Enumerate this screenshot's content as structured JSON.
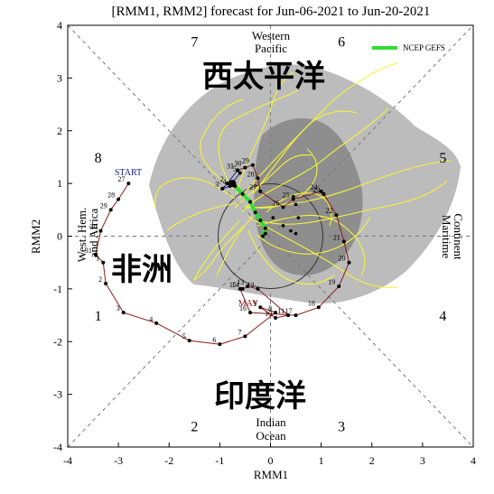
{
  "chart_data": {
    "type": "line",
    "title": "[RMM1, RMM2] forecast for Jun-06-2021 to Jun-20-2021",
    "xlabel": "RMM1",
    "ylabel": "RMM2",
    "xlim": [
      -4,
      4
    ],
    "ylim": [
      -4,
      4
    ],
    "xticks": [
      "-4",
      "-3",
      "-2",
      "-1",
      "0",
      "1",
      "2",
      "3",
      "4"
    ],
    "yticks": [
      "-4",
      "-3",
      "-2",
      "-1",
      "0",
      "1",
      "2",
      "3",
      "4"
    ],
    "grid": false,
    "legend": {
      "position": "top-right",
      "entries": [
        "NCEP GEFS"
      ]
    },
    "colors": {
      "observed_may": "#8b1a1a",
      "observed_june": "#1a1a8b",
      "ensemble": "#ffff33",
      "mean": "#33dd33",
      "spread_outer": "#bdbdbd",
      "spread_inner": "#8a8a8a"
    },
    "phases": [
      {
        "label": "1",
        "x": -3.4,
        "y": -1.5
      },
      {
        "label": "2",
        "x": -1.5,
        "y": -3.6
      },
      {
        "label": "3",
        "x": 1.4,
        "y": -3.6
      },
      {
        "label": "4",
        "x": 3.4,
        "y": -1.5
      },
      {
        "label": "5",
        "x": 3.4,
        "y": 1.5
      },
      {
        "label": "6",
        "x": 1.4,
        "y": 3.7
      },
      {
        "label": "7",
        "x": -1.5,
        "y": 3.7
      },
      {
        "label": "8",
        "x": -3.4,
        "y": 1.5
      }
    ],
    "regions": {
      "top": [
        "Western",
        "Pacific"
      ],
      "bottom": [
        "Indian",
        "Ocean"
      ],
      "left": [
        "West. Hem.",
        "and Africa"
      ],
      "right": [
        "Maritime",
        "Continent"
      ]
    },
    "overlay_labels": {
      "top": "西太平洋",
      "left": "非洲",
      "bottom": "印度洋"
    },
    "markers": {
      "start": "START",
      "month_may": "MAY"
    },
    "observed_may": [
      {
        "day": "27",
        "x": -2.8,
        "y": 1.0
      },
      {
        "day": "28",
        "x": -3.0,
        "y": 0.7
      },
      {
        "day": "29",
        "x": -3.15,
        "y": 0.5
      },
      {
        "day": "30",
        "x": -3.35,
        "y": 0.1
      },
      {
        "day": "31",
        "x": -3.45,
        "y": -0.35
      },
      {
        "day": "1",
        "x": -3.3,
        "y": -0.5
      },
      {
        "day": "2",
        "x": -3.25,
        "y": -0.9
      },
      {
        "day": "3",
        "x": -2.9,
        "y": -1.45
      },
      {
        "day": "4",
        "x": -2.25,
        "y": -1.65
      },
      {
        "day": "5",
        "x": -1.6,
        "y": -1.98
      },
      {
        "day": "6",
        "x": -1.0,
        "y": -2.05
      },
      {
        "day": "7",
        "x": -0.5,
        "y": -1.9
      },
      {
        "day": "8",
        "x": 0.1,
        "y": -1.45
      },
      {
        "day": "9",
        "x": -0.2,
        "y": -1.35
      },
      {
        "day": "10",
        "x": 0.1,
        "y": -1.55
      },
      {
        "day": "11",
        "x": 0.35,
        "y": -1.5
      },
      {
        "day": "12",
        "x": -0.25,
        "y": -1.0
      },
      {
        "day": "13",
        "x": -0.45,
        "y": -0.95
      },
      {
        "day": "14",
        "x": -0.55,
        "y": -1.0
      },
      {
        "day": "15",
        "x": -0.6,
        "y": -1.0
      },
      {
        "day": "16",
        "x": -0.4,
        "y": -1.45
      },
      {
        "day": "17",
        "x": 0.5,
        "y": -1.5
      },
      {
        "day": "18",
        "x": 0.95,
        "y": -1.35
      },
      {
        "day": "19",
        "x": 1.35,
        "y": -0.95
      },
      {
        "day": "20",
        "x": 1.55,
        "y": -0.5
      },
      {
        "day": "21",
        "x": 1.45,
        "y": -0.1
      },
      {
        "day": "22",
        "x": 1.3,
        "y": 0.4
      },
      {
        "day": "23",
        "x": 1.05,
        "y": 0.8
      },
      {
        "day": "24",
        "x": 1.0,
        "y": 0.85
      },
      {
        "day": "25",
        "x": 0.45,
        "y": 0.7
      },
      {
        "day": "26",
        "x": 0.25,
        "y": 0.55
      },
      {
        "day": "27",
        "x": -0.2,
        "y": 0.85
      },
      {
        "day": "28",
        "x": -0.25,
        "y": 1.1
      },
      {
        "day": "29",
        "x": -0.35,
        "y": 1.35
      },
      {
        "day": "30",
        "x": -0.5,
        "y": 1.3
      },
      {
        "day": "31",
        "x": -0.65,
        "y": 1.25
      }
    ],
    "observed_june": [
      {
        "day": "1",
        "x": -0.65,
        "y": 1.25
      },
      {
        "day": "2",
        "x": -0.85,
        "y": 1.0
      },
      {
        "day": "3",
        "x": -0.95,
        "y": 0.9
      },
      {
        "day": "4",
        "x": -0.8,
        "y": 0.95
      },
      {
        "day": "5",
        "x": -0.6,
        "y": 1.2
      }
    ],
    "ensemble_mean": [
      {
        "x": -0.7,
        "y": 0.95
      },
      {
        "x": -0.55,
        "y": 0.8
      },
      {
        "x": -0.4,
        "y": 0.65
      },
      {
        "x": -0.3,
        "y": 0.45
      },
      {
        "x": -0.2,
        "y": 0.3
      },
      {
        "x": -0.1,
        "y": 0.15
      },
      {
        "x": -0.15,
        "y": 0.0
      },
      {
        "x": -0.1,
        "y": 0.05
      }
    ],
    "ensemble_mean_dots": [
      {
        "x": 0.05,
        "y": 0.35
      },
      {
        "x": 0.25,
        "y": 0.2
      },
      {
        "x": 0.4,
        "y": 0.1
      },
      {
        "x": 0.5,
        "y": 0.05
      },
      {
        "x": 0.55,
        "y": 0.35
      },
      {
        "x": 0.5,
        "y": 0.6
      },
      {
        "x": 0.45,
        "y": 0.75
      }
    ]
  }
}
